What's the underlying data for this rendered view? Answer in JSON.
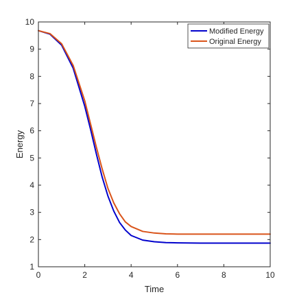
{
  "chart_data": {
    "type": "line",
    "xlabel": "Time",
    "ylabel": "Energy",
    "xlim": [
      0,
      10
    ],
    "ylim": [
      1,
      10
    ],
    "xticks": [
      0,
      2,
      4,
      6,
      8,
      10
    ],
    "yticks": [
      1,
      2,
      3,
      4,
      5,
      6,
      7,
      8,
      9,
      10
    ],
    "grid": false,
    "legend_position": "top-right",
    "x": [
      0,
      0.5,
      1,
      1.5,
      2,
      2.25,
      2.5,
      2.75,
      3,
      3.25,
      3.5,
      3.75,
      4,
      4.5,
      5,
      5.5,
      6,
      7,
      8,
      9,
      10
    ],
    "series": [
      {
        "name": "Modified Energy",
        "color": "#0000cc",
        "values": [
          9.68,
          9.55,
          9.15,
          8.3,
          6.9,
          6.05,
          5.15,
          4.3,
          3.6,
          3.05,
          2.63,
          2.35,
          2.15,
          1.98,
          1.92,
          1.89,
          1.88,
          1.87,
          1.87,
          1.87,
          1.87
        ]
      },
      {
        "name": "Original Energy",
        "color": "#d95319",
        "values": [
          9.68,
          9.57,
          9.2,
          8.4,
          7.1,
          6.25,
          5.4,
          4.6,
          3.88,
          3.35,
          2.95,
          2.65,
          2.48,
          2.3,
          2.24,
          2.21,
          2.2,
          2.2,
          2.2,
          2.2,
          2.2
        ]
      }
    ]
  }
}
